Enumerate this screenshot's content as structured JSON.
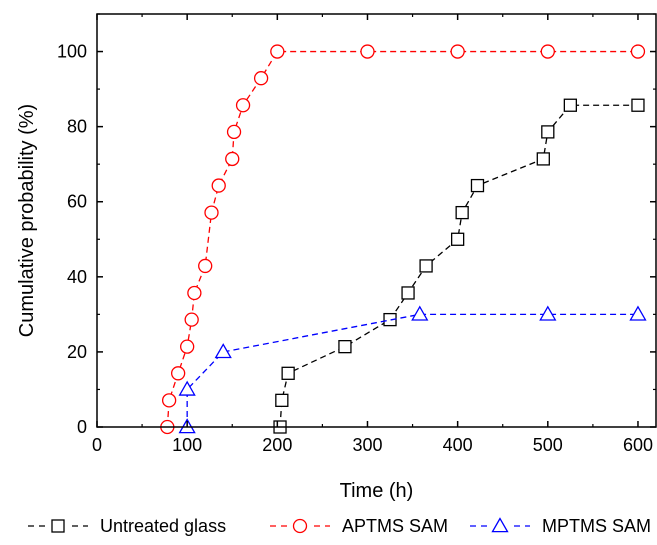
{
  "chart_data": {
    "type": "scatter",
    "title": "",
    "xlabel": "Time (h)",
    "ylabel": "Cumulative probability (%)",
    "xlim": [
      0,
      620
    ],
    "ylim": [
      0,
      110
    ],
    "xticks": [
      0,
      100,
      200,
      300,
      400,
      500,
      600
    ],
    "yticks": [
      0,
      20,
      40,
      60,
      80,
      100
    ],
    "grid": false,
    "legend_placement": "bottom",
    "series": [
      {
        "name": "Untreated glass",
        "color": "#000000",
        "marker": "square",
        "line": "dashed",
        "points": [
          [
            203,
            0
          ],
          [
            205,
            7.1
          ],
          [
            212,
            14.3
          ],
          [
            275,
            21.4
          ],
          [
            325,
            28.6
          ],
          [
            345,
            35.7
          ],
          [
            365,
            42.9
          ],
          [
            400,
            50
          ],
          [
            405,
            57.1
          ],
          [
            422,
            64.3
          ],
          [
            495,
            71.4
          ],
          [
            500,
            78.6
          ],
          [
            525,
            85.7
          ],
          [
            600,
            85.7
          ]
        ]
      },
      {
        "name": "APTMS SAM",
        "color": "#ff0000",
        "marker": "circle",
        "line": "dashed",
        "points": [
          [
            78,
            0
          ],
          [
            80,
            7.1
          ],
          [
            90,
            14.3
          ],
          [
            100,
            21.4
          ],
          [
            105,
            28.6
          ],
          [
            108,
            35.7
          ],
          [
            120,
            42.9
          ],
          [
            127,
            57.1
          ],
          [
            135,
            64.3
          ],
          [
            150,
            71.4
          ],
          [
            152,
            78.6
          ],
          [
            162,
            85.7
          ],
          [
            182,
            92.9
          ],
          [
            200,
            100
          ],
          [
            300,
            100
          ],
          [
            400,
            100
          ],
          [
            500,
            100
          ],
          [
            600,
            100
          ]
        ]
      },
      {
        "name": "MPTMS SAM",
        "color": "#0000ff",
        "marker": "triangle",
        "line": "dashed",
        "points": [
          [
            100,
            0
          ],
          [
            100,
            10
          ],
          [
            140,
            20
          ],
          [
            358,
            30
          ],
          [
            500,
            30
          ],
          [
            600,
            30
          ]
        ]
      }
    ]
  }
}
